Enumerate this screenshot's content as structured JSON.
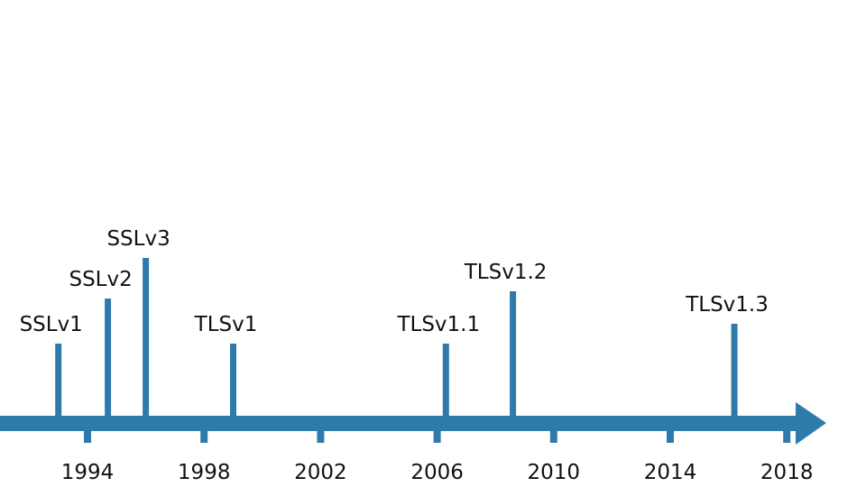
{
  "colors": {
    "axis": "#2e7bab",
    "text": "#111111"
  },
  "axis": {
    "year_ticks": [
      {
        "label": "1994",
        "year": 1994
      },
      {
        "label": "1998",
        "year": 1998
      },
      {
        "label": "2002",
        "year": 2002
      },
      {
        "label": "2006",
        "year": 2006
      },
      {
        "label": "2010",
        "year": 2010
      },
      {
        "label": "2014",
        "year": 2014
      },
      {
        "label": "2018",
        "year": 2018
      }
    ]
  },
  "events": [
    {
      "label": "SSLv1",
      "year": 1993.0
    },
    {
      "label": "SSLv2",
      "year": 1994.7
    },
    {
      "label": "SSLv3",
      "year": 1996.0
    },
    {
      "label": "TLSv1",
      "year": 1999.0
    },
    {
      "label": "TLSv1.1",
      "year": 2006.3
    },
    {
      "label": "TLSv1.2",
      "year": 2008.6
    },
    {
      "label": "TLSv1.3",
      "year": 2016.2
    }
  ]
}
